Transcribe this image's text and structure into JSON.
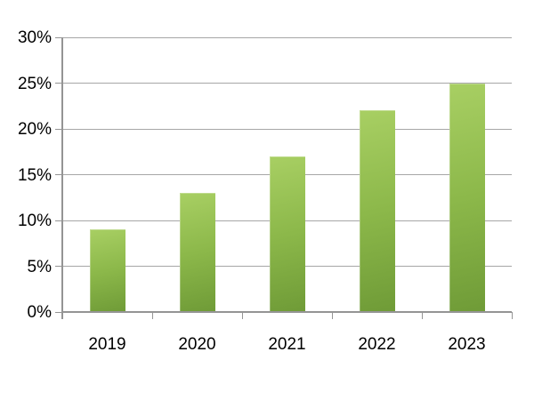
{
  "chart_data": {
    "type": "bar",
    "title": "",
    "xlabel": "",
    "ylabel": "",
    "categories": [
      "2019",
      "2020",
      "2021",
      "2022",
      "2023"
    ],
    "values": [
      9,
      13,
      17,
      22,
      25
    ],
    "ylim": [
      0,
      30
    ],
    "ytick_step": 5,
    "ytick_labels": [
      "0%",
      "5%",
      "10%",
      "15%",
      "20%",
      "25%",
      "30%"
    ],
    "grid": true,
    "legend_position": "none",
    "colors": {
      "bar_gradient_top": "#a8cf63",
      "bar_gradient_mid": "#8cb84a",
      "bar_gradient_bottom": "#6f9b37",
      "gridline": "#a6a6a6",
      "axis": "#949494",
      "label_text": "#000000",
      "background": "#ffffff"
    }
  }
}
